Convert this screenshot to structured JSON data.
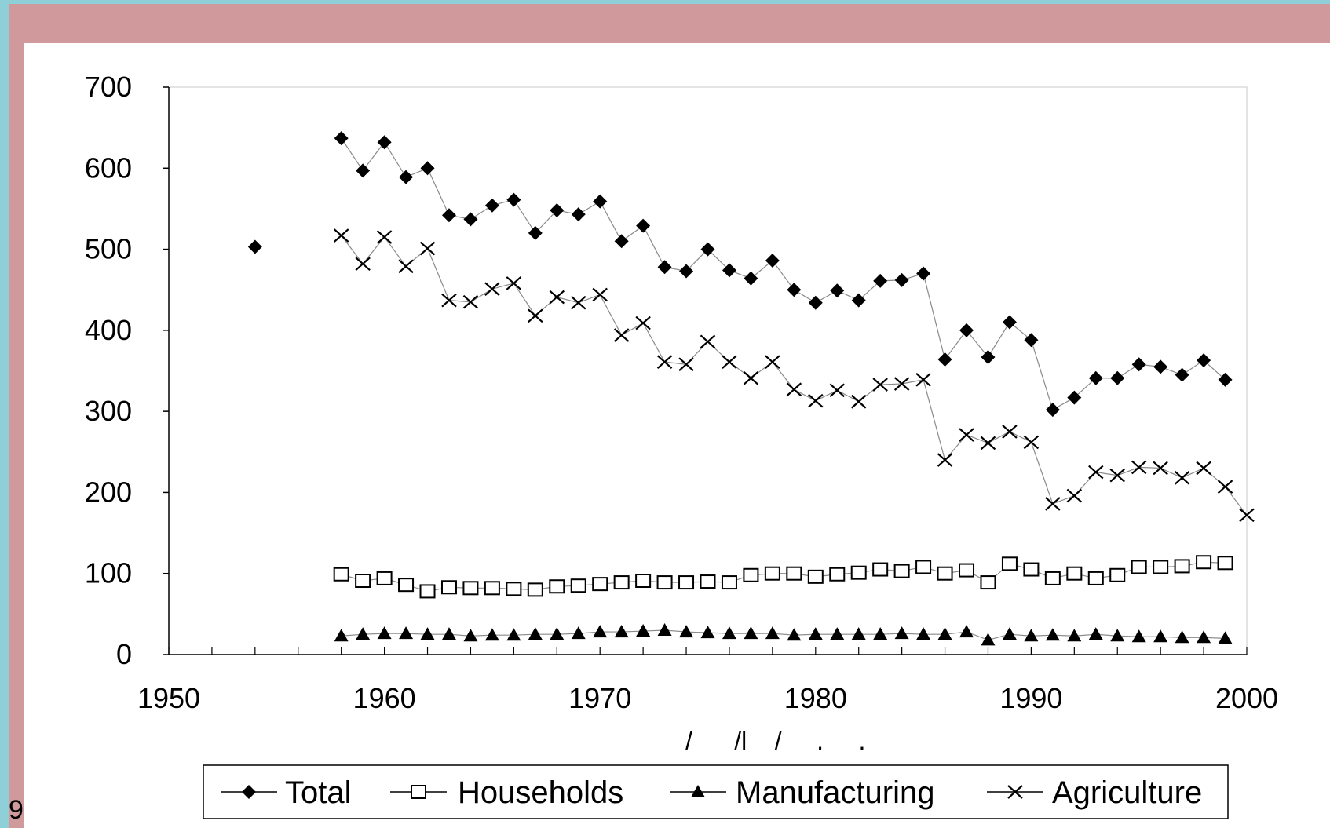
{
  "page_number": "9",
  "chart_data": {
    "type": "scatter",
    "title": "",
    "xlabel": "/      /l    /     .     .",
    "ylabel": "",
    "xlim": [
      1950,
      2000
    ],
    "ylim": [
      0,
      700
    ],
    "xticks": [
      1950,
      1960,
      1970,
      1980,
      1990,
      2000
    ],
    "yticks": [
      0,
      100,
      200,
      300,
      400,
      500,
      600,
      700
    ],
    "grid": false,
    "legend_position": "bottom",
    "series": [
      {
        "name": "Total",
        "marker": "diamond",
        "color": "#000000",
        "x": [
          1954,
          1958,
          1959,
          1960,
          1961,
          1962,
          1963,
          1964,
          1965,
          1966,
          1967,
          1968,
          1969,
          1970,
          1971,
          1972,
          1973,
          1974,
          1975,
          1976,
          1977,
          1978,
          1979,
          1980,
          1981,
          1982,
          1983,
          1984,
          1985,
          1986,
          1987,
          1988,
          1989,
          1990,
          1991,
          1992,
          1993,
          1994,
          1995,
          1996,
          1997,
          1998,
          1999
        ],
        "y": [
          503,
          637,
          597,
          632,
          589,
          600,
          542,
          537,
          554,
          561,
          520,
          548,
          543,
          559,
          510,
          529,
          478,
          473,
          500,
          474,
          464,
          486,
          450,
          434,
          449,
          437,
          461,
          462,
          470,
          364,
          400,
          367,
          410,
          388,
          302,
          317,
          341,
          341,
          358,
          355,
          345,
          363,
          339
        ]
      },
      {
        "name": "Households",
        "marker": "square-open",
        "color": "#000000",
        "x": [
          1958,
          1959,
          1960,
          1961,
          1962,
          1963,
          1964,
          1965,
          1966,
          1967,
          1968,
          1969,
          1970,
          1971,
          1972,
          1973,
          1974,
          1975,
          1976,
          1977,
          1978,
          1979,
          1980,
          1981,
          1982,
          1983,
          1984,
          1985,
          1986,
          1987,
          1988,
          1989,
          1990,
          1991,
          1992,
          1993,
          1994,
          1995,
          1996,
          1997,
          1998,
          1999
        ],
        "y": [
          99,
          91,
          94,
          86,
          78,
          83,
          82,
          82,
          81,
          80,
          84,
          85,
          87,
          89,
          91,
          89,
          89,
          90,
          89,
          98,
          100,
          100,
          96,
          99,
          101,
          105,
          103,
          108,
          100,
          104,
          89,
          112,
          105,
          94,
          100,
          94,
          98,
          108,
          108,
          109,
          114,
          113
        ]
      },
      {
        "name": "Manufacturing",
        "marker": "triangle",
        "color": "#000000",
        "x": [
          1958,
          1959,
          1960,
          1961,
          1962,
          1963,
          1964,
          1965,
          1966,
          1967,
          1968,
          1969,
          1970,
          1971,
          1972,
          1973,
          1974,
          1975,
          1976,
          1977,
          1978,
          1979,
          1980,
          1981,
          1982,
          1983,
          1984,
          1985,
          1986,
          1987,
          1988,
          1989,
          1990,
          1991,
          1992,
          1993,
          1994,
          1995,
          1996,
          1997,
          1998,
          1999
        ],
        "y": [
          23,
          25,
          26,
          26,
          25,
          25,
          23,
          24,
          24,
          25,
          25,
          26,
          28,
          28,
          29,
          30,
          28,
          27,
          26,
          26,
          26,
          24,
          25,
          25,
          25,
          25,
          26,
          25,
          25,
          28,
          18,
          25,
          23,
          24,
          23,
          25,
          23,
          22,
          22,
          21,
          21,
          20
        ]
      },
      {
        "name": "Agriculture",
        "marker": "x",
        "color": "#000000",
        "x": [
          1958,
          1959,
          1960,
          1961,
          1962,
          1963,
          1964,
          1965,
          1966,
          1967,
          1968,
          1969,
          1970,
          1971,
          1972,
          1973,
          1974,
          1975,
          1976,
          1977,
          1978,
          1979,
          1980,
          1981,
          1982,
          1983,
          1984,
          1985,
          1986,
          1987,
          1988,
          1989,
          1990,
          1991,
          1992,
          1993,
          1994,
          1995,
          1996,
          1997,
          1998,
          1999,
          2000
        ],
        "y": [
          517,
          482,
          515,
          479,
          501,
          437,
          435,
          451,
          458,
          418,
          441,
          434,
          444,
          394,
          409,
          361,
          358,
          386,
          361,
          341,
          361,
          327,
          313,
          326,
          312,
          333,
          334,
          339,
          240,
          271,
          261,
          275,
          262,
          186,
          196,
          225,
          221,
          231,
          230,
          218,
          230,
          207,
          172
        ]
      }
    ]
  }
}
